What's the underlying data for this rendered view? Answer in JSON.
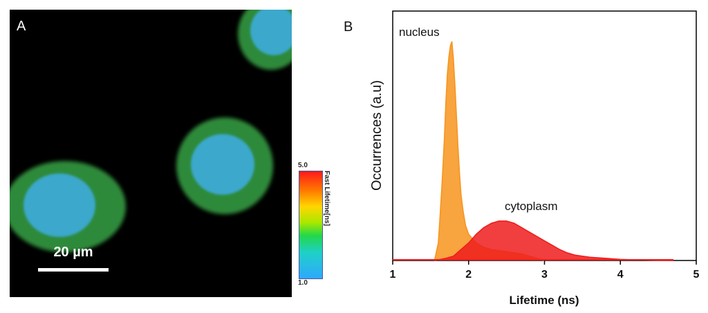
{
  "panel_a": {
    "label": "A",
    "scale_bar_label": "20 µm",
    "colorbar": {
      "max_label": "5.0",
      "min_label": "1.0",
      "title": "Fast Lifetime[ns]"
    }
  },
  "panel_b": {
    "label": "B"
  },
  "colors": {
    "nucleus": "#f7941d",
    "cytoplasm": "#ee1c1c",
    "nucleus_fluor": "#3aa8cc",
    "cytoplasm_fluor": "#2e8a3a"
  },
  "chart_data": {
    "type": "line",
    "xlabel": "Lifetime (ns)",
    "ylabel": "Occurrences (a.u)",
    "xlim": [
      1,
      5
    ],
    "x_ticks": [
      "1",
      "2",
      "3",
      "4",
      "5"
    ],
    "annotations": [
      "nucleus",
      "cytoplasm"
    ],
    "series": [
      {
        "name": "nucleus",
        "color": "#f7941d",
        "x": [
          1.55,
          1.6,
          1.62,
          1.65,
          1.68,
          1.7,
          1.72,
          1.74,
          1.76,
          1.78,
          1.8,
          1.82,
          1.84,
          1.86,
          1.88,
          1.9,
          1.93,
          1.96,
          2.0,
          2.05,
          2.1,
          2.2,
          2.3,
          2.5,
          2.7,
          2.9,
          3.0
        ],
        "y": [
          0,
          0.08,
          0.18,
          0.35,
          0.55,
          0.72,
          0.85,
          0.93,
          0.98,
          1.0,
          0.92,
          0.8,
          0.66,
          0.52,
          0.4,
          0.3,
          0.22,
          0.16,
          0.12,
          0.1,
          0.08,
          0.06,
          0.05,
          0.04,
          0.03,
          0.01,
          0
        ]
      },
      {
        "name": "cytoplasm",
        "color": "#ee1c1c",
        "x": [
          1.55,
          1.7,
          1.8,
          1.9,
          2.0,
          2.1,
          2.2,
          2.3,
          2.4,
          2.5,
          2.6,
          2.7,
          2.8,
          2.9,
          3.0,
          3.1,
          3.2,
          3.3,
          3.4,
          3.5,
          3.6,
          3.8,
          4.0,
          4.2,
          4.5,
          4.7
        ],
        "y": [
          0,
          0.01,
          0.02,
          0.05,
          0.08,
          0.12,
          0.15,
          0.17,
          0.18,
          0.18,
          0.17,
          0.15,
          0.13,
          0.11,
          0.09,
          0.07,
          0.05,
          0.035,
          0.025,
          0.02,
          0.015,
          0.01,
          0.005,
          0.003,
          0.001,
          0
        ]
      }
    ]
  }
}
